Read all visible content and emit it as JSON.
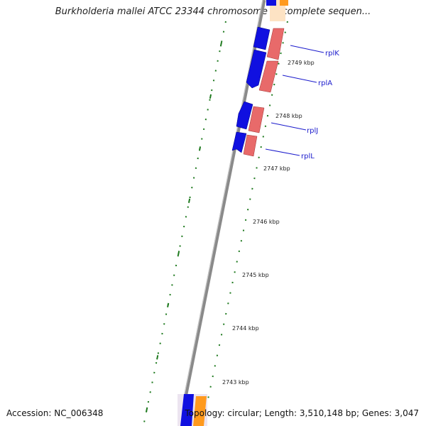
{
  "title": "Burkholderia mallei ATCC 23344 chromosome 1, complete sequen...",
  "accession": "Accession: NC_006348",
  "topology": "Topology: circular; Length: 3,510,148 bp; Genes: 3,047",
  "colors": {
    "forward_gene": "#1010e0",
    "reverse_gene": "#e86a6a",
    "orange_feature": "#ff9a1e",
    "tick_green": "#1f7a1f",
    "backbone": "#8a8a8a",
    "label_blue": "#1a1acc"
  },
  "scale_labels": [
    "2749 kbp",
    "2748 kbp",
    "2747 kbp",
    "2746 kbp",
    "2745 kbp",
    "2744 kbp",
    "2743 kbp"
  ],
  "gene_labels": [
    "rplK",
    "rplA",
    "rplJ",
    "rplL"
  ]
}
